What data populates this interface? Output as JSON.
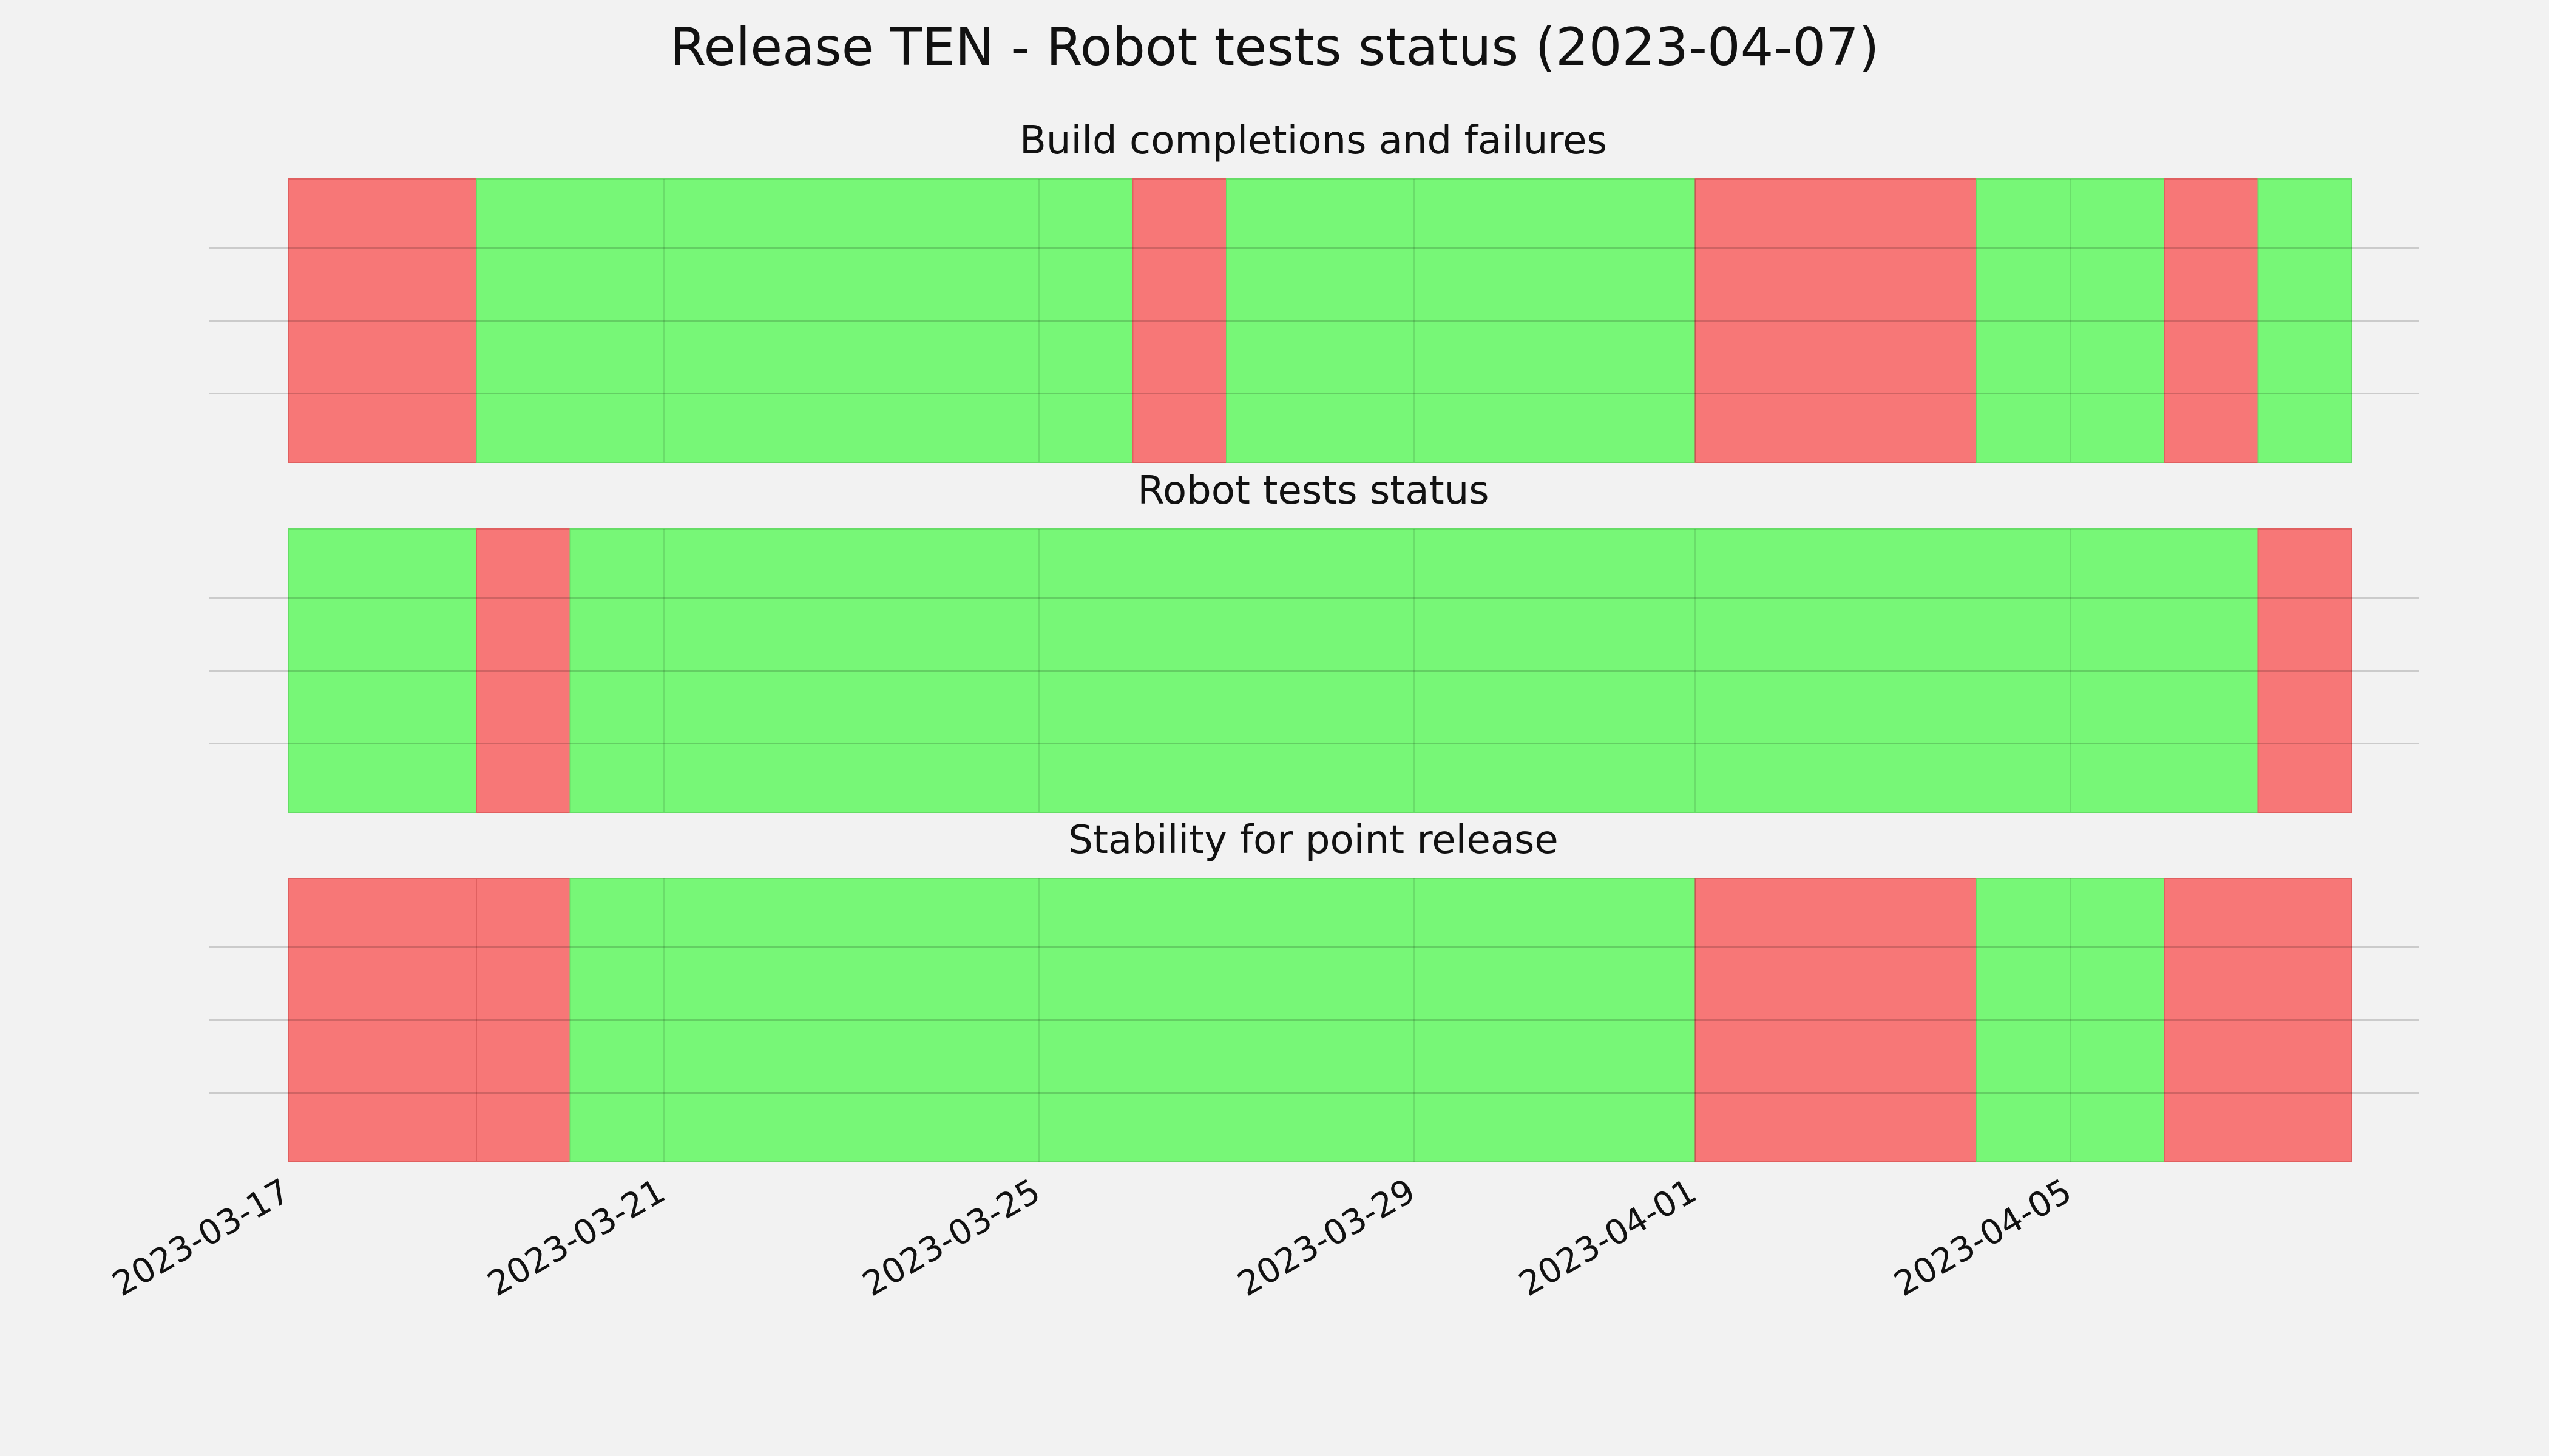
{
  "chart_data": {
    "type": "timeline",
    "title": "Release TEN - Robot tests status (2023-04-07)",
    "x_axis": {
      "type": "date",
      "range": [
        "2023-03-17",
        "2023-04-08"
      ],
      "ticks": [
        "2023-03-17",
        "2023-03-21",
        "2023-03-25",
        "2023-03-29",
        "2023-04-01",
        "2023-04-05"
      ]
    },
    "grid": true,
    "status_colors": {
      "pass": "#77f777",
      "fail": "#f77777"
    },
    "panels": [
      {
        "title": "Build completions and failures",
        "segments": [
          {
            "start": "2023-03-17",
            "end": "2023-03-19",
            "status": "fail"
          },
          {
            "start": "2023-03-19",
            "end": "2023-03-26",
            "status": "pass"
          },
          {
            "start": "2023-03-26",
            "end": "2023-03-27",
            "status": "fail"
          },
          {
            "start": "2023-03-27",
            "end": "2023-04-01",
            "status": "pass"
          },
          {
            "start": "2023-04-01",
            "end": "2023-04-04",
            "status": "fail"
          },
          {
            "start": "2023-04-04",
            "end": "2023-04-06",
            "status": "pass"
          },
          {
            "start": "2023-04-06",
            "end": "2023-04-07",
            "status": "fail"
          },
          {
            "start": "2023-04-07",
            "end": "2023-04-08",
            "status": "pass"
          }
        ]
      },
      {
        "title": "Robot tests status",
        "segments": [
          {
            "start": "2023-03-17",
            "end": "2023-03-19",
            "status": "pass"
          },
          {
            "start": "2023-03-19",
            "end": "2023-03-20",
            "status": "fail"
          },
          {
            "start": "2023-03-20",
            "end": "2023-04-07",
            "status": "pass"
          },
          {
            "start": "2023-04-07",
            "end": "2023-04-08",
            "status": "fail"
          }
        ]
      },
      {
        "title": "Stability for point release",
        "segments": [
          {
            "start": "2023-03-17",
            "end": "2023-03-19",
            "status": "fail"
          },
          {
            "start": "2023-03-19",
            "end": "2023-03-20",
            "status": "fail"
          },
          {
            "start": "2023-03-20",
            "end": "2023-04-01",
            "status": "pass"
          },
          {
            "start": "2023-04-01",
            "end": "2023-04-04",
            "status": "fail"
          },
          {
            "start": "2023-04-04",
            "end": "2023-04-06",
            "status": "pass"
          },
          {
            "start": "2023-04-06",
            "end": "2023-04-08",
            "status": "fail"
          }
        ]
      }
    ]
  }
}
